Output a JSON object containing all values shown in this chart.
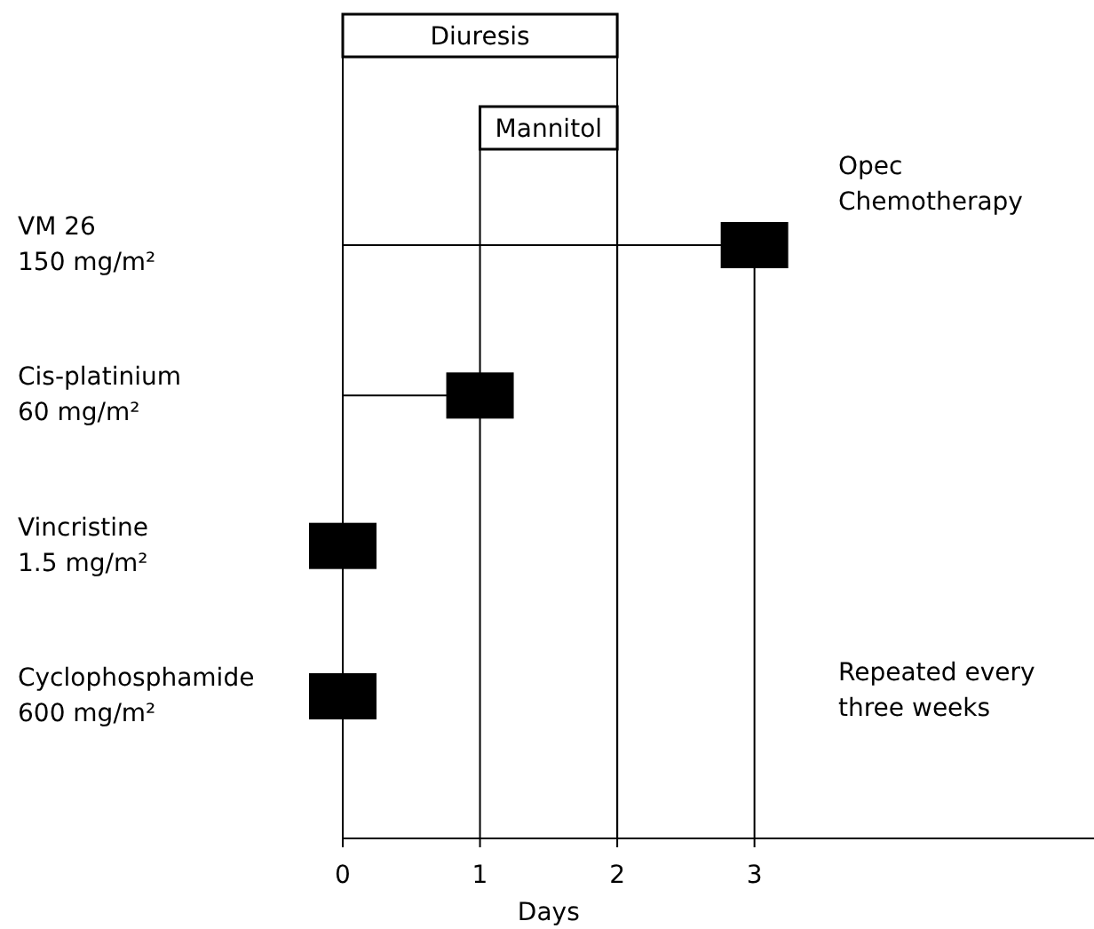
{
  "chart_data": {
    "type": "scatter",
    "orientation": "horizontal",
    "marker": "square",
    "color": "#000000",
    "xlabel": "Days",
    "categories": [
      "VM 26\n150 mg/m²",
      "Cis-platinium\n60 mg/m²",
      "Vincristine\n1.5 mg/m²",
      "Cyclophosphamide\n600 mg/m²"
    ],
    "values": [
      3,
      1,
      0,
      0
    ],
    "xlim": [
      0,
      5.5
    ],
    "xticks": [
      0,
      1,
      2,
      3
    ],
    "bands": [
      {
        "axis": "x",
        "from": 0,
        "to": 2,
        "label": "Diuresis"
      },
      {
        "axis": "x",
        "from": 1,
        "to": 2,
        "label": "Mannitol"
      }
    ],
    "annotations": [
      "Opec\nChemotherapy",
      "Repeated every\nthree weeks"
    ]
  }
}
